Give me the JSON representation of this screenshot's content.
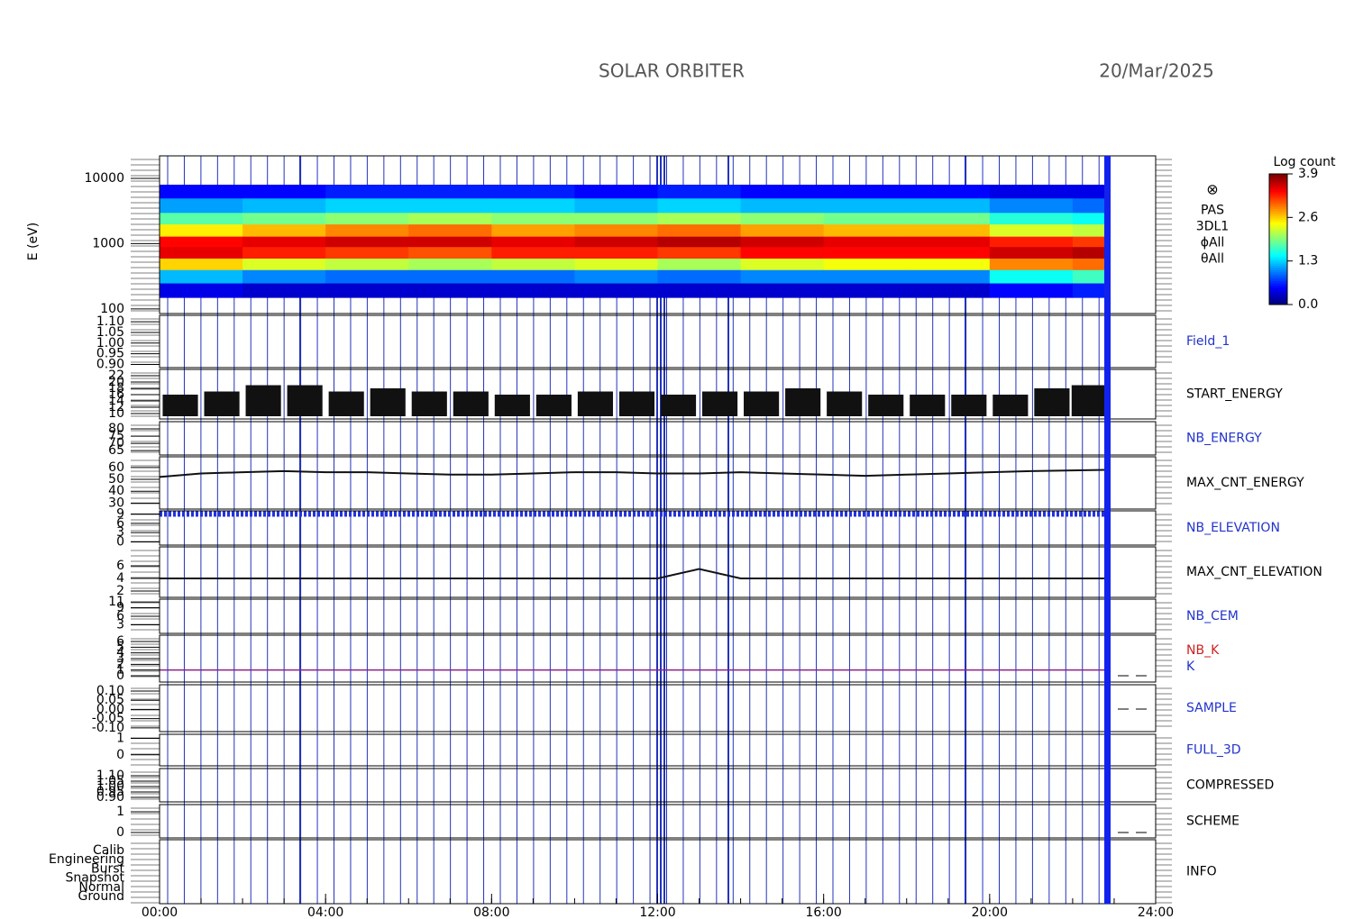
{
  "chart_data": [
    {
      "type": "heatmap",
      "title": "SOLAR ORBITER",
      "subtitle": "20/Mar/2025",
      "ylabel": "E (eV)",
      "log_y": true,
      "ylim": [
        85,
        22100
      ],
      "yticks": [
        100,
        1000,
        10000
      ],
      "x_bins": [
        0,
        2,
        4,
        6,
        8,
        10,
        12,
        14,
        16,
        18,
        20,
        22,
        22.8
      ],
      "y_bins": [
        150,
        250,
        400,
        600,
        900,
        1300,
        2000,
        3000,
        5000,
        8000
      ],
      "values": [
        [
          0.4,
          1.2,
          2.6,
          3.5,
          3.4,
          2.5,
          1.8,
          1.1,
          0.5
        ],
        [
          0.3,
          1.0,
          2.3,
          3.3,
          3.5,
          2.7,
          1.9,
          1.2,
          0.5
        ],
        [
          0.3,
          0.9,
          2.2,
          3.2,
          3.6,
          2.9,
          2.0,
          1.3,
          0.6
        ],
        [
          0.3,
          0.9,
          2.1,
          3.1,
          3.6,
          3.0,
          2.1,
          1.3,
          0.6
        ],
        [
          0.3,
          0.9,
          2.2,
          3.3,
          3.5,
          2.8,
          2.0,
          1.3,
          0.6
        ],
        [
          0.3,
          1.0,
          2.3,
          3.3,
          3.6,
          2.9,
          2.0,
          1.2,
          0.5
        ],
        [
          0.3,
          0.9,
          2.1,
          3.2,
          3.7,
          3.0,
          2.1,
          1.3,
          0.6
        ],
        [
          0.3,
          1.0,
          2.3,
          3.4,
          3.6,
          2.8,
          2.0,
          1.2,
          0.5
        ],
        [
          0.3,
          1.0,
          2.4,
          3.4,
          3.5,
          2.7,
          1.9,
          1.2,
          0.5
        ],
        [
          0.3,
          1.0,
          2.4,
          3.4,
          3.5,
          2.7,
          1.9,
          1.2,
          0.5
        ],
        [
          0.5,
          1.5,
          2.9,
          3.6,
          3.3,
          2.3,
          1.6,
          1.0,
          0.4
        ],
        [
          0.6,
          1.7,
          3.0,
          3.7,
          3.2,
          2.2,
          1.5,
          0.9,
          0.4
        ]
      ],
      "colorbar": {
        "title": "Log count",
        "lim": [
          0,
          3.9
        ],
        "ticks": [
          {
            "value": 0,
            "label": "0.0"
          },
          {
            "value": 1.3,
            "label": "1.3"
          },
          {
            "value": 2.6,
            "label": "2.6"
          },
          {
            "value": 3.9,
            "label": "3.9"
          }
        ]
      },
      "labels": [
        {
          "text": "PAS",
          "color": "#000000"
        },
        {
          "text": "3DL1",
          "color": "#000000"
        },
        {
          "text": "ϕAll",
          "color": "#000000"
        },
        {
          "text": "θAll",
          "color": "#000000"
        }
      ]
    },
    {
      "type": "empty",
      "ylim": [
        0.885,
        1.13
      ],
      "yticks": [
        {
          "value": 0.9,
          "label": "0.90"
        },
        {
          "value": 0.95,
          "label": "0.95"
        },
        {
          "value": 1,
          "label": "1.00"
        },
        {
          "value": 1.05,
          "label": "1.05"
        },
        {
          "value": 1.1,
          "label": "1.10"
        }
      ],
      "labels": [
        {
          "text": "Field_1",
          "color": "#2233cc"
        }
      ]
    },
    {
      "type": "bar",
      "ylim": [
        8.3,
        24
      ],
      "yticks": [
        10,
        12,
        14,
        16,
        18,
        20,
        22
      ],
      "x": [
        0.5,
        1.5,
        2.5,
        3.5,
        4.5,
        5.5,
        6.5,
        7.5,
        8.5,
        9.5,
        10.5,
        11.5,
        12.5,
        13.5,
        14.5,
        15.5,
        16.5,
        17.5,
        18.5,
        19.5,
        20.5,
        21.5,
        22.4
      ],
      "series": [
        {
          "color": "#111111",
          "values": [
            16,
            17,
            19,
            19,
            17,
            18,
            17,
            17,
            16,
            16,
            17,
            17,
            16,
            17,
            17,
            18,
            17,
            16,
            16,
            16,
            16,
            18,
            19
          ]
        }
      ],
      "labels": [
        {
          "text": "START_ENERGY",
          "color": "#000000"
        }
      ]
    },
    {
      "type": "empty",
      "ylim": [
        62,
        85
      ],
      "yticks": [
        65,
        70,
        75,
        80
      ],
      "labels": [
        {
          "text": "NB_ENERGY",
          "color": "#2233cc"
        }
      ]
    },
    {
      "type": "line",
      "ylim": [
        25,
        69
      ],
      "yticks": [
        30,
        40,
        50,
        60
      ],
      "x": [
        0,
        1,
        2,
        3,
        4,
        5,
        6,
        7,
        8,
        9,
        10,
        11,
        12,
        13,
        14,
        15,
        16,
        17,
        18,
        19,
        20,
        21,
        22.8
      ],
      "series": [
        {
          "color": "#111111",
          "width": 2,
          "values": [
            52,
            55,
            56,
            57,
            56,
            56,
            55,
            54,
            54,
            55,
            56,
            56,
            55,
            55,
            56,
            55,
            54,
            53,
            54,
            55,
            56,
            57,
            58
          ]
        }
      ],
      "labels": [
        {
          "text": "MAX_CNT_ENERGY",
          "color": "#000000"
        }
      ]
    },
    {
      "type": "line",
      "ylim": [
        -1,
        10
      ],
      "yticks": [
        0,
        3,
        6,
        9
      ],
      "x": [
        0,
        2,
        4,
        6,
        8,
        10,
        12,
        14,
        16,
        18,
        20,
        22.8
      ],
      "series": [
        {
          "color": "#2233dd",
          "width": 6,
          "dash": "3 2",
          "values": [
            9,
            9,
            9,
            9,
            9,
            9,
            9,
            9,
            9,
            9,
            9,
            9
          ]
        }
      ],
      "labels": [
        {
          "text": "NB_ELEVATION",
          "color": "#2233cc"
        }
      ]
    },
    {
      "type": "line",
      "ylim": [
        1,
        9
      ],
      "yticks": [
        2,
        4,
        6
      ],
      "x": [
        0,
        1,
        2,
        3,
        4,
        5,
        6,
        7,
        8,
        9,
        10,
        11,
        12,
        13,
        14,
        15,
        16,
        17,
        18,
        19,
        20,
        21,
        22.8
      ],
      "series": [
        {
          "color": "#111111",
          "width": 2,
          "values": [
            4,
            4,
            4,
            4,
            4,
            4,
            4,
            4,
            4,
            4,
            4,
            4,
            4,
            5.5,
            4,
            4,
            4,
            4,
            4,
            4,
            4,
            4,
            4
          ]
        }
      ],
      "labels": [
        {
          "text": "MAX_CNT_ELEVATION",
          "color": "#000000"
        }
      ]
    },
    {
      "type": "empty",
      "ylim": [
        0,
        12
      ],
      "yticks": [
        3,
        6,
        9,
        11
      ],
      "labels": [
        {
          "text": "NB_CEM",
          "color": "#2233cc"
        }
      ]
    },
    {
      "type": "line",
      "ylim": [
        -1.1,
        7.1
      ],
      "yticks": [
        0,
        1,
        2,
        3,
        4,
        5,
        6
      ],
      "x": [
        0,
        22.8
      ],
      "series": [
        {
          "color": "#882288",
          "width": 1.5,
          "values": [
            1,
            1
          ]
        }
      ],
      "labels": [
        {
          "text": "NB_K",
          "color": "#cc2222"
        },
        {
          "text": "K",
          "color": "#2233cc"
        }
      ]
    },
    {
      "type": "empty",
      "ylim": [
        -0.12,
        0.134
      ],
      "yticks": [
        {
          "value": -0.1,
          "label": "-0.10"
        },
        {
          "value": -0.05,
          "label": "-0.05"
        },
        {
          "value": 0,
          "label": "0.00"
        },
        {
          "value": 0.05,
          "label": "0.05"
        },
        {
          "value": 0.1,
          "label": "0.10"
        }
      ],
      "labels": [
        {
          "text": "SAMPLE",
          "color": "#2233cc"
        }
      ]
    },
    {
      "type": "empty",
      "ylim": [
        -0.67,
        1.25
      ],
      "yticks": [
        0,
        1
      ],
      "labels": [
        {
          "text": "FULL_3D",
          "color": "#2233cc"
        }
      ]
    },
    {
      "type": "empty",
      "ylim": [
        0.858,
        1.167
      ],
      "yticks": [
        {
          "value": 0.9,
          "label": "0.90"
        },
        {
          "value": 0.95,
          "label": "0.95"
        },
        {
          "value": 1,
          "label": "1.00"
        },
        {
          "value": 1.05,
          "label": "1.05"
        },
        {
          "value": 1.1,
          "label": "1.10"
        }
      ],
      "labels": [
        {
          "text": "COMPRESSED",
          "color": "#000000"
        }
      ]
    },
    {
      "type": "empty",
      "ylim": [
        -0.26,
        1.35
      ],
      "yticks": [
        0,
        1
      ],
      "labels": [
        {
          "text": "SCHEME",
          "color": "#000000"
        }
      ]
    },
    {
      "type": "categorical",
      "categories": [
        "Calib",
        "Engineering",
        "Burst",
        "Snapshot",
        "Normal",
        "Ground"
      ],
      "labels": [
        {
          "text": "INFO",
          "color": "#000000"
        }
      ],
      "xlim": [
        0,
        24
      ],
      "xticks": [
        {
          "value": 0,
          "label": "00:00"
        },
        {
          "value": 4,
          "label": "04:00"
        },
        {
          "value": 8,
          "label": "08:00"
        },
        {
          "value": 12,
          "label": "12:00"
        },
        {
          "value": 16,
          "label": "16:00"
        },
        {
          "value": 20,
          "label": "20:00"
        },
        {
          "value": 24,
          "label": "24:00"
        }
      ]
    }
  ]
}
